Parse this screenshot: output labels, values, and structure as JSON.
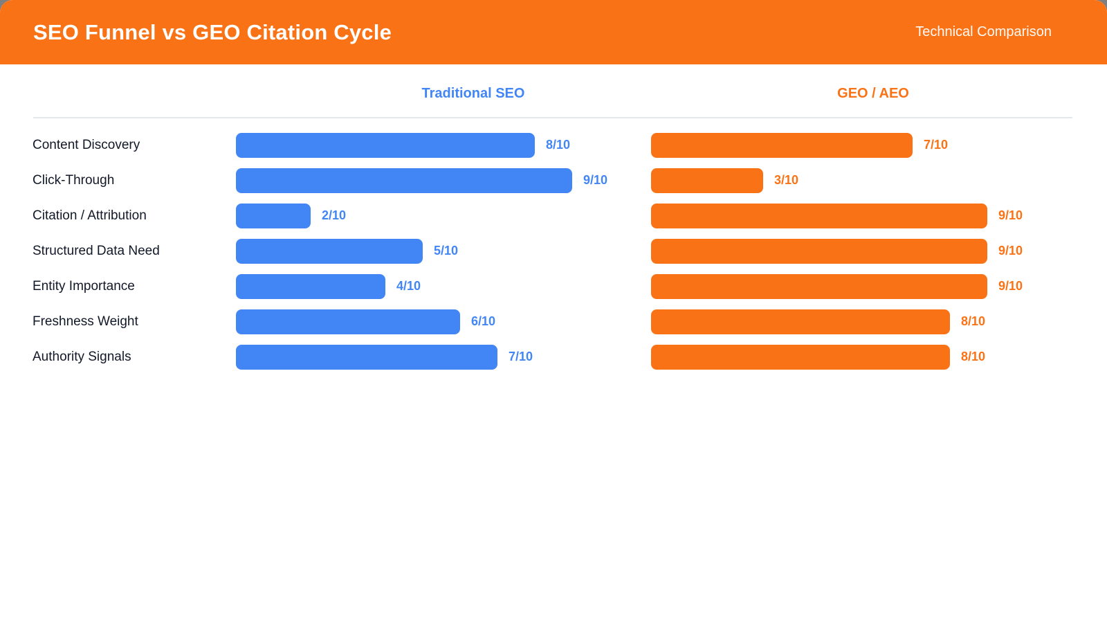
{
  "header": {
    "title": "SEO Funnel vs GEO Citation Cycle",
    "subtitle": "Technical Comparison",
    "background": "#F97316",
    "text_color": "#ffffff"
  },
  "colors": {
    "seo_blue": "#4285F4",
    "geo_orange": "#F97316",
    "row_label": "#111827",
    "divider": "#e4e7eb",
    "card_background": "#ffffff"
  },
  "chart_data": {
    "type": "bar",
    "orientation": "horizontal",
    "title": "SEO Funnel vs GEO Citation Cycle",
    "subtitle": "Technical Comparison",
    "categories": [
      "Content Discovery",
      "Click-Through",
      "Citation / Attribution",
      "Structured Data Need",
      "Entity Importance",
      "Freshness Weight",
      "Authority Signals"
    ],
    "series": [
      {
        "name": "Traditional SEO",
        "color": "#4285F4",
        "values": [
          8,
          9,
          2,
          5,
          4,
          6,
          7
        ],
        "value_labels": [
          "8/10",
          "9/10",
          "2/10",
          "5/10",
          "4/10",
          "6/10",
          "7/10"
        ]
      },
      {
        "name": "GEO / AEO",
        "color": "#F97316",
        "values": [
          7,
          3,
          9,
          9,
          9,
          8,
          8
        ],
        "value_labels": [
          "7/10",
          "3/10",
          "9/10",
          "9/10",
          "9/10",
          "8/10",
          "8/10"
        ]
      }
    ],
    "max": 10,
    "xlim": [
      0,
      10
    ],
    "grid": false,
    "legend_position": "column-headers"
  }
}
